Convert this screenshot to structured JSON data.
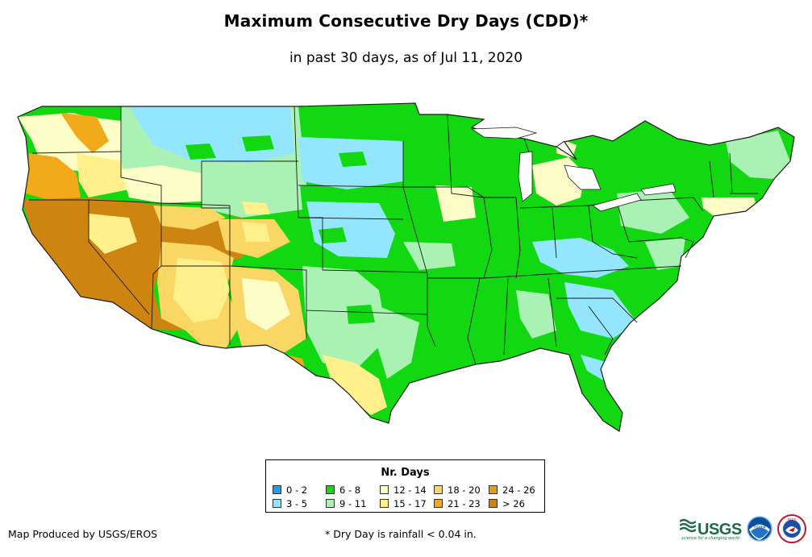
{
  "title": "Maximum Consecutive Dry Days (CDD)*",
  "subtitle": "in past 30 days, as of Jul 11, 2020",
  "legend": {
    "title": "Nr. Days",
    "items": [
      {
        "label": "0 - 2",
        "color": "#1aa0f0"
      },
      {
        "label": "3 - 5",
        "color": "#94e6ff"
      },
      {
        "label": "6 - 8",
        "color": "#12d812"
      },
      {
        "label": "9 - 11",
        "color": "#aaf2b4"
      },
      {
        "label": "12 - 14",
        "color": "#fdfdc8"
      },
      {
        "label": "15 - 17",
        "color": "#fff08c"
      },
      {
        "label": "18 - 20",
        "color": "#fad764"
      },
      {
        "label": "21 - 23",
        "color": "#f2aa1a"
      },
      {
        "label": "24 - 26",
        "color": "#e69b17"
      },
      {
        "label": "> 26",
        "color": "#cd8410"
      }
    ]
  },
  "footer": {
    "credit": "Map Produced by USGS/EROS",
    "footnote": "* Dry Day is rainfall < 0.04 in."
  },
  "logos": {
    "usgs": "USGS",
    "usgs_tagline": "science for a changing world",
    "noaa": "noaa",
    "nws": "NWS"
  },
  "colors": {
    "state_border": "#1a1a1a",
    "usgs_green": "#1b6b46"
  }
}
